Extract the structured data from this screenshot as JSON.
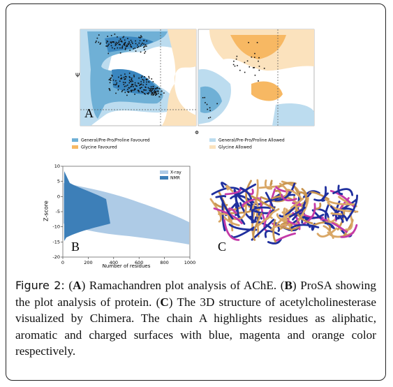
{
  "figure": {
    "ramachandran": {
      "panel": "A",
      "y_axis": "Ψ",
      "x_axis": "Φ",
      "legend": [
        "General/Pre-Pro/Proline Favoured",
        "Glycine Favoured",
        "General/Pre-Pro/Proline Allowed",
        "Glycine Allowed"
      ]
    },
    "prosa": {
      "panel": "B",
      "ylabel": "Z-score",
      "xlabel": "Number of residues",
      "legend": [
        "X-ray",
        "NMR"
      ],
      "yticks": [
        10,
        5,
        0,
        -5,
        -10,
        -15,
        -20
      ],
      "xticks": [
        0,
        200,
        400,
        600,
        800,
        1000
      ]
    },
    "structure": {
      "panel": "C"
    }
  },
  "caption": {
    "label": "Figure 2:",
    "parts": [
      "(",
      "A",
      ") Ramachandren plot analysis of AChE. (",
      "B",
      ") ProSA showing the plot analysis of protein. (",
      "C",
      ") The 3D structure of acetylcholinesterase visualized by Chimera. The chain A highlights residues as aliphatic, aromatic and charged surfaces with blue, magenta and orange color respectively."
    ]
  }
}
